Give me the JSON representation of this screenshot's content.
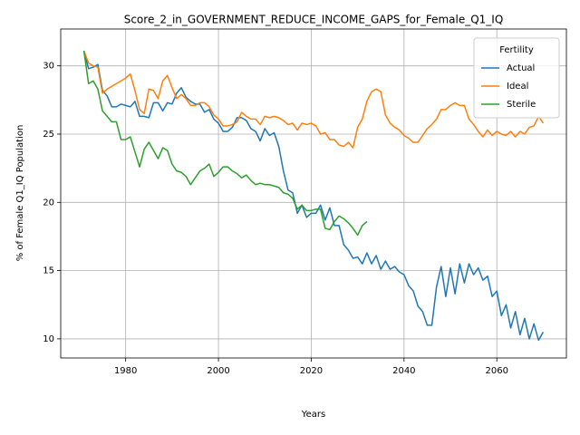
{
  "chart_data": {
    "type": "line",
    "title": "Score_2_in_GOVERNMENT_REDUCE_INCOME_GAPS_for_Female_Q1_IQ",
    "xlabel": "Years",
    "ylabel": "% of Female Q1_IQ Population",
    "legend_title": "Fertility",
    "legend_position": "upper right",
    "grid": true,
    "xlim": [
      1966,
      2075
    ],
    "ylim": [
      8.6,
      32.7
    ],
    "xticks": [
      1980,
      2000,
      2020,
      2040,
      2060
    ],
    "yticks": [
      10,
      15,
      20,
      25,
      30
    ],
    "x": [
      1971,
      1972,
      1973,
      1974,
      1975,
      1976,
      1977,
      1978,
      1979,
      1980,
      1981,
      1982,
      1983,
      1984,
      1985,
      1986,
      1987,
      1988,
      1989,
      1990,
      1991,
      1992,
      1993,
      1994,
      1995,
      1996,
      1997,
      1998,
      1999,
      2000,
      2001,
      2002,
      2003,
      2004,
      2005,
      2006,
      2007,
      2008,
      2009,
      2010,
      2011,
      2012,
      2013,
      2014,
      2015,
      2016,
      2017,
      2018,
      2019,
      2020,
      2021,
      2022,
      2023,
      2024,
      2025,
      2026,
      2027,
      2028,
      2029,
      2030,
      2031,
      2032,
      2033,
      2034,
      2035,
      2036,
      2037,
      2038,
      2039,
      2040,
      2041,
      2042,
      2043,
      2044,
      2045,
      2046,
      2047,
      2048,
      2049,
      2050,
      2051,
      2052,
      2053,
      2054,
      2055,
      2056,
      2057,
      2058,
      2059,
      2060,
      2061,
      2062,
      2063,
      2064,
      2065,
      2066,
      2067,
      2068,
      2069,
      2070
    ],
    "series": [
      {
        "name": "Actual",
        "color": "#1f77b4",
        "values": [
          31.1,
          29.8,
          29.9,
          30.1,
          28.2,
          27.8,
          27.0,
          27.0,
          27.2,
          27.1,
          27.0,
          27.4,
          26.3,
          26.3,
          26.2,
          27.3,
          27.3,
          26.7,
          27.3,
          27.2,
          28.0,
          28.4,
          27.7,
          27.4,
          27.2,
          27.2,
          26.6,
          26.8,
          26.1,
          25.8,
          25.2,
          25.2,
          25.5,
          26.2,
          26.2,
          26.0,
          25.4,
          25.2,
          24.5,
          25.4,
          24.9,
          25.1,
          24.1,
          22.3,
          20.9,
          20.7,
          19.2,
          19.8,
          18.9,
          19.2,
          19.2,
          19.8,
          18.7,
          19.6,
          18.3,
          18.3,
          16.9,
          16.5,
          15.9,
          16.0,
          15.5,
          16.3,
          15.5,
          16.1,
          15.1,
          15.7,
          15.1,
          15.3,
          14.9,
          14.7,
          13.9,
          13.5,
          12.4,
          12.0,
          11.0,
          11.0,
          13.8,
          15.3,
          13.1,
          15.2,
          13.3,
          15.5,
          14.1,
          15.5,
          14.7,
          15.2,
          14.3,
          14.6,
          13.1,
          13.5,
          11.7,
          12.5,
          10.8,
          12.0,
          10.3,
          11.5,
          10.0,
          11.1,
          9.9,
          10.5
        ]
      },
      {
        "name": "Ideal",
        "color": "#ff7f0e",
        "values": [
          31.1,
          30.2,
          30.0,
          29.9,
          28.0,
          28.3,
          28.5,
          28.7,
          28.9,
          29.1,
          29.4,
          28.2,
          26.8,
          26.5,
          28.3,
          28.2,
          27.6,
          28.9,
          29.3,
          28.4,
          27.6,
          27.9,
          27.6,
          27.1,
          27.1,
          27.3,
          27.3,
          27.0,
          26.4,
          26.1,
          25.6,
          25.6,
          25.7,
          25.9,
          26.6,
          26.3,
          26.1,
          26.1,
          25.7,
          26.3,
          26.2,
          26.3,
          26.2,
          26.0,
          25.7,
          25.8,
          25.3,
          25.8,
          25.7,
          25.8,
          25.6,
          25.0,
          25.1,
          24.6,
          24.6,
          24.2,
          24.1,
          24.4,
          24.0,
          25.5,
          26.1,
          27.4,
          28.1,
          28.3,
          28.1,
          26.4,
          25.8,
          25.5,
          25.3,
          24.9,
          24.7,
          24.4,
          24.4,
          24.9,
          25.4,
          25.7,
          26.1,
          26.8,
          26.8,
          27.1,
          27.3,
          27.1,
          27.1,
          26.1,
          25.7,
          25.2,
          24.8,
          25.3,
          24.9,
          25.2,
          25.0,
          24.9,
          25.2,
          24.8,
          25.2,
          25.0,
          25.5,
          25.6,
          26.3,
          25.8
        ]
      },
      {
        "name": "Sterile",
        "color": "#2ca02c",
        "values": [
          31.1,
          28.7,
          28.9,
          28.3,
          26.7,
          26.3,
          25.9,
          25.9,
          24.6,
          24.6,
          24.8,
          23.7,
          22.6,
          23.9,
          24.4,
          23.8,
          23.2,
          24.0,
          23.8,
          22.8,
          22.3,
          22.2,
          21.9,
          21.3,
          21.8,
          22.3,
          22.5,
          22.8,
          21.9,
          22.2,
          22.6,
          22.6,
          22.3,
          22.1,
          21.8,
          22.0,
          21.6,
          21.3,
          21.4,
          21.3,
          21.3,
          21.2,
          21.1,
          20.7,
          20.6,
          20.3,
          19.5,
          19.8,
          19.4,
          19.4,
          19.5,
          19.5,
          18.1,
          18.0,
          18.6,
          19.0,
          18.8,
          18.5,
          18.1,
          17.6,
          18.3,
          18.6,
          null,
          null,
          null,
          null,
          null,
          null,
          null,
          null,
          null,
          null,
          null,
          null,
          null,
          null,
          null,
          null,
          null,
          null,
          null,
          null,
          null,
          null,
          null,
          null,
          null,
          null,
          null,
          null,
          null,
          null,
          null,
          null,
          null,
          null,
          null,
          null,
          null,
          null
        ]
      }
    ]
  }
}
